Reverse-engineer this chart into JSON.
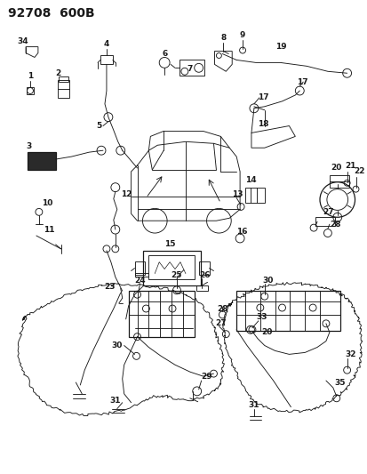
{
  "title": "92708  600B",
  "bg_color": "#ffffff",
  "fg_color": "#1a1a1a",
  "title_fontsize": 10,
  "label_fontsize": 6.5,
  "figsize": [
    4.14,
    5.33
  ],
  "dpi": 100
}
